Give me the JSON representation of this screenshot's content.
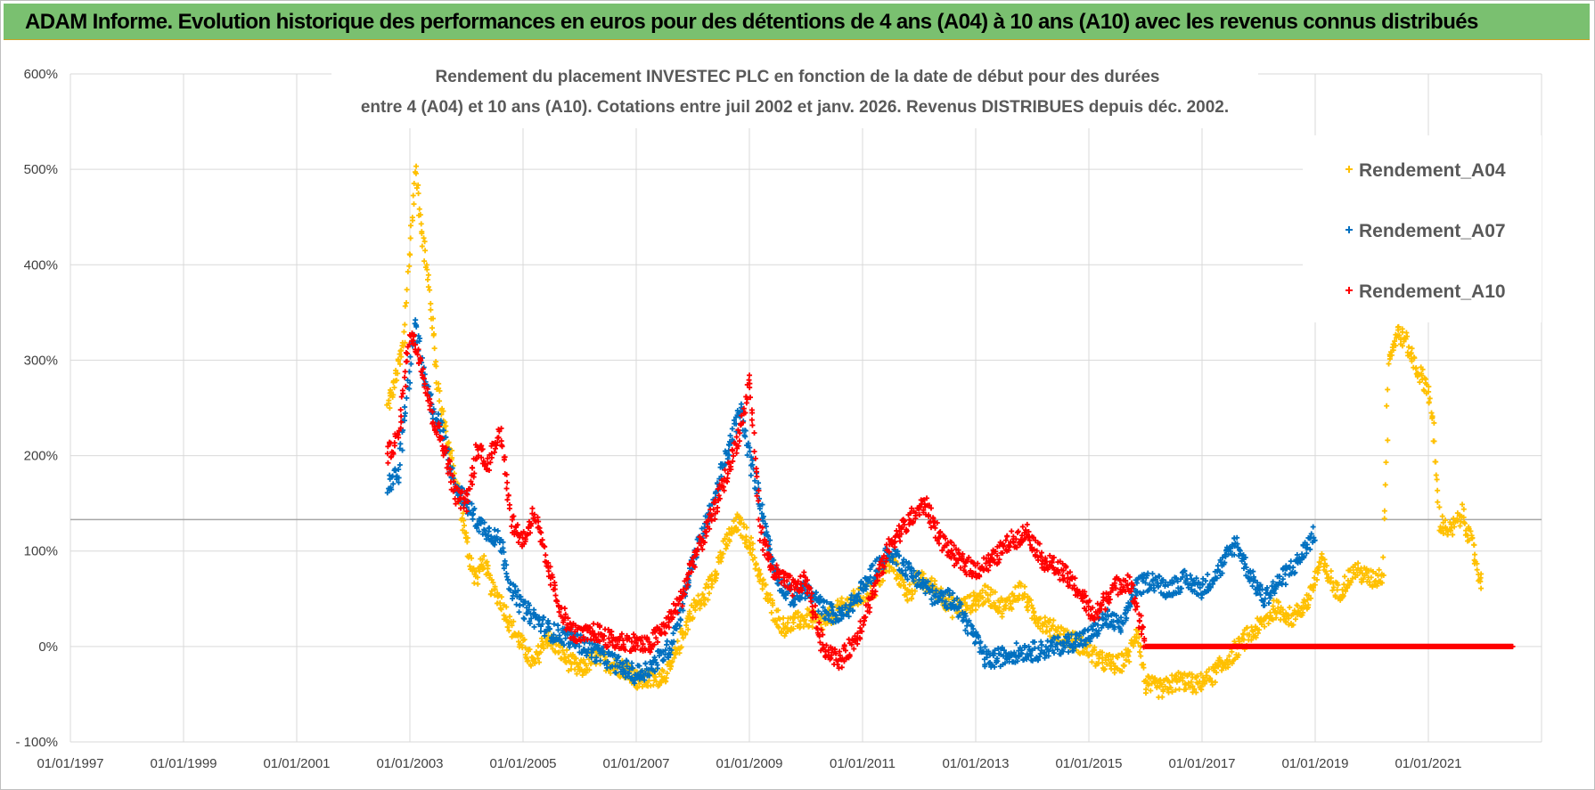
{
  "header": {
    "title": "ADAM Informe. Evolution historique des performances en euros pour des détentions de 4 ans (A04) à 10 ans (A10) avec les revenus connus distribués"
  },
  "chart_data": {
    "type": "scatter",
    "title_line1": "Rendement du placement INVESTEC PLC en fonction de la date de début pour des durées",
    "title_line2": "entre 4 (A04) et 10 ans (A10).  Cotations entre juil 2002 et janv. 2026. Revenus DISTRIBUES depuis déc. 2002.",
    "xlabel": "",
    "ylabel": "",
    "xlim": [
      1997.0,
      2023.0
    ],
    "ylim": [
      -100,
      600
    ],
    "x_ticks": [
      {
        "value": 1997,
        "label": "01/01/1997"
      },
      {
        "value": 1999,
        "label": "01/01/1999"
      },
      {
        "value": 2001,
        "label": "01/01/2001"
      },
      {
        "value": 2003,
        "label": "01/01/2003"
      },
      {
        "value": 2005,
        "label": "01/01/2005"
      },
      {
        "value": 2007,
        "label": "01/01/2007"
      },
      {
        "value": 2009,
        "label": "01/01/2009"
      },
      {
        "value": 2011,
        "label": "01/01/2011"
      },
      {
        "value": 2013,
        "label": "01/01/2013"
      },
      {
        "value": 2015,
        "label": "01/01/2015"
      },
      {
        "value": 2017,
        "label": "01/01/2017"
      },
      {
        "value": 2019,
        "label": "01/01/2019"
      },
      {
        "value": 2021,
        "label": "01/01/2021"
      }
    ],
    "y_ticks": [
      {
        "value": 600,
        "label": "600%"
      },
      {
        "value": 500,
        "label": "500%"
      },
      {
        "value": 400,
        "label": "400%"
      },
      {
        "value": 300,
        "label": "300%"
      },
      {
        "value": 200,
        "label": "200%"
      },
      {
        "value": 100,
        "label": "100%"
      },
      {
        "value": 0,
        "label": "0%"
      },
      {
        "value": -100,
        "label": "- 100%"
      }
    ],
    "reference_line_value": 133,
    "legend_position": "right",
    "series": [
      {
        "name": "Rendement_A04",
        "color": "#ffc000",
        "points": [
          [
            2002.6,
            250
          ],
          [
            2002.75,
            280
          ],
          [
            2002.9,
            320
          ],
          [
            2003.0,
            420
          ],
          [
            2003.1,
            500
          ],
          [
            2003.2,
            440
          ],
          [
            2003.35,
            370
          ],
          [
            2003.5,
            270
          ],
          [
            2003.65,
            220
          ],
          [
            2003.85,
            160
          ],
          [
            2004.0,
            110
          ],
          [
            2004.15,
            70
          ],
          [
            2004.3,
            90
          ],
          [
            2004.45,
            60
          ],
          [
            2004.6,
            50
          ],
          [
            2004.8,
            20
          ],
          [
            2005.0,
            0
          ],
          [
            2005.2,
            -20
          ],
          [
            2005.4,
            10
          ],
          [
            2005.6,
            0
          ],
          [
            2005.8,
            -15
          ],
          [
            2006.0,
            -25
          ],
          [
            2006.3,
            -10
          ],
          [
            2006.6,
            -20
          ],
          [
            2006.9,
            -25
          ],
          [
            2007.0,
            -35
          ],
          [
            2007.3,
            -35
          ],
          [
            2007.6,
            -25
          ],
          [
            2007.8,
            10
          ],
          [
            2008.0,
            40
          ],
          [
            2008.2,
            50
          ],
          [
            2008.4,
            80
          ],
          [
            2008.6,
            110
          ],
          [
            2008.8,
            130
          ],
          [
            2009.0,
            110
          ],
          [
            2009.2,
            70
          ],
          [
            2009.4,
            40
          ],
          [
            2009.6,
            20
          ],
          [
            2009.8,
            25
          ],
          [
            2010.0,
            30
          ],
          [
            2010.3,
            25
          ],
          [
            2010.6,
            40
          ],
          [
            2010.9,
            50
          ],
          [
            2011.2,
            60
          ],
          [
            2011.5,
            90
          ],
          [
            2011.8,
            55
          ],
          [
            2012.0,
            70
          ],
          [
            2012.3,
            60
          ],
          [
            2012.6,
            40
          ],
          [
            2012.9,
            45
          ],
          [
            2013.2,
            55
          ],
          [
            2013.5,
            40
          ],
          [
            2013.8,
            60
          ],
          [
            2014.0,
            35
          ],
          [
            2014.3,
            20
          ],
          [
            2014.6,
            10
          ],
          [
            2014.9,
            0
          ],
          [
            2015.2,
            -15
          ],
          [
            2015.5,
            -20
          ],
          [
            2015.7,
            -10
          ],
          [
            2015.85,
            20
          ],
          [
            2016.0,
            -40
          ],
          [
            2016.3,
            -45
          ],
          [
            2016.6,
            -35
          ],
          [
            2016.9,
            -40
          ],
          [
            2017.2,
            -30
          ],
          [
            2017.5,
            -10
          ],
          [
            2017.8,
            10
          ],
          [
            2018.0,
            20
          ],
          [
            2018.3,
            40
          ],
          [
            2018.6,
            30
          ],
          [
            2018.9,
            50
          ],
          [
            2019.1,
            90
          ],
          [
            2019.4,
            55
          ],
          [
            2019.7,
            80
          ],
          [
            2020.0,
            70
          ],
          [
            2020.2,
            75
          ],
          [
            2020.3,
            300
          ],
          [
            2020.45,
            330
          ],
          [
            2020.6,
            320
          ],
          [
            2020.8,
            290
          ],
          [
            2021.0,
            270
          ],
          [
            2021.1,
            220
          ],
          [
            2021.2,
            130
          ],
          [
            2021.4,
            120
          ],
          [
            2021.6,
            140
          ],
          [
            2021.8,
            100
          ],
          [
            2021.95,
            60
          ]
        ]
      },
      {
        "name": "Rendement_A07",
        "color": "#0070c0",
        "points": [
          [
            2002.6,
            170
          ],
          [
            2002.8,
            180
          ],
          [
            2003.0,
            290
          ],
          [
            2003.1,
            340
          ],
          [
            2003.25,
            280
          ],
          [
            2003.4,
            250
          ],
          [
            2003.6,
            220
          ],
          [
            2003.8,
            170
          ],
          [
            2004.0,
            150
          ],
          [
            2004.2,
            130
          ],
          [
            2004.4,
            120
          ],
          [
            2004.6,
            110
          ],
          [
            2004.8,
            60
          ],
          [
            2005.0,
            40
          ],
          [
            2005.2,
            30
          ],
          [
            2005.5,
            15
          ],
          [
            2005.8,
            10
          ],
          [
            2006.1,
            0
          ],
          [
            2006.4,
            -10
          ],
          [
            2006.7,
            -20
          ],
          [
            2007.0,
            -30
          ],
          [
            2007.3,
            -20
          ],
          [
            2007.6,
            0
          ],
          [
            2007.8,
            40
          ],
          [
            2008.0,
            90
          ],
          [
            2008.3,
            140
          ],
          [
            2008.6,
            200
          ],
          [
            2008.85,
            250
          ],
          [
            2009.0,
            200
          ],
          [
            2009.2,
            150
          ],
          [
            2009.4,
            90
          ],
          [
            2009.6,
            60
          ],
          [
            2009.8,
            50
          ],
          [
            2010.0,
            60
          ],
          [
            2010.3,
            40
          ],
          [
            2010.6,
            30
          ],
          [
            2010.9,
            50
          ],
          [
            2011.2,
            80
          ],
          [
            2011.5,
            100
          ],
          [
            2011.8,
            80
          ],
          [
            2012.0,
            70
          ],
          [
            2012.3,
            50
          ],
          [
            2012.6,
            50
          ],
          [
            2012.8,
            30
          ],
          [
            2013.2,
            -15
          ],
          [
            2013.5,
            -10
          ],
          [
            2013.8,
            -5
          ],
          [
            2014.1,
            -5
          ],
          [
            2014.4,
            0
          ],
          [
            2014.7,
            5
          ],
          [
            2015.0,
            10
          ],
          [
            2015.3,
            30
          ],
          [
            2015.6,
            20
          ],
          [
            2015.8,
            60
          ],
          [
            2016.1,
            70
          ],
          [
            2016.4,
            60
          ],
          [
            2016.7,
            70
          ],
          [
            2017.0,
            60
          ],
          [
            2017.3,
            80
          ],
          [
            2017.6,
            110
          ],
          [
            2017.8,
            80
          ],
          [
            2018.1,
            50
          ],
          [
            2018.4,
            70
          ],
          [
            2018.7,
            90
          ],
          [
            2019.0,
            120
          ]
        ]
      },
      {
        "name": "Rendement_A10",
        "color": "#ff0000",
        "points": [
          [
            2002.6,
            200
          ],
          [
            2002.8,
            220
          ],
          [
            2003.0,
            330
          ],
          [
            2003.2,
            300
          ],
          [
            2003.4,
            240
          ],
          [
            2003.6,
            210
          ],
          [
            2003.8,
            160
          ],
          [
            2004.0,
            150
          ],
          [
            2004.2,
            210
          ],
          [
            2004.4,
            190
          ],
          [
            2004.6,
            230
          ],
          [
            2004.8,
            130
          ],
          [
            2005.0,
            110
          ],
          [
            2005.2,
            140
          ],
          [
            2005.4,
            90
          ],
          [
            2005.6,
            50
          ],
          [
            2005.8,
            20
          ],
          [
            2006.0,
            10
          ],
          [
            2006.3,
            15
          ],
          [
            2006.6,
            5
          ],
          [
            2006.9,
            5
          ],
          [
            2007.2,
            0
          ],
          [
            2007.5,
            20
          ],
          [
            2007.8,
            50
          ],
          [
            2008.0,
            90
          ],
          [
            2008.3,
            130
          ],
          [
            2008.6,
            180
          ],
          [
            2008.85,
            230
          ],
          [
            2009.0,
            280
          ],
          [
            2009.2,
            120
          ],
          [
            2009.4,
            80
          ],
          [
            2009.6,
            70
          ],
          [
            2009.8,
            60
          ],
          [
            2010.0,
            70
          ],
          [
            2010.3,
            0
          ],
          [
            2010.6,
            -15
          ],
          [
            2010.9,
            10
          ],
          [
            2011.2,
            60
          ],
          [
            2011.5,
            110
          ],
          [
            2011.8,
            130
          ],
          [
            2012.1,
            150
          ],
          [
            2012.4,
            110
          ],
          [
            2012.7,
            90
          ],
          [
            2013.0,
            80
          ],
          [
            2013.3,
            90
          ],
          [
            2013.6,
            110
          ],
          [
            2013.9,
            120
          ],
          [
            2014.2,
            90
          ],
          [
            2014.5,
            80
          ],
          [
            2014.8,
            60
          ],
          [
            2015.1,
            30
          ],
          [
            2015.4,
            60
          ],
          [
            2015.7,
            70
          ],
          [
            2015.85,
            40
          ],
          [
            2016.0,
            0
          ],
          [
            2017.0,
            0
          ],
          [
            2018.0,
            0
          ],
          [
            2019.0,
            0
          ],
          [
            2020.0,
            0
          ],
          [
            2021.0,
            0
          ],
          [
            2022.0,
            0
          ],
          [
            2022.5,
            0
          ]
        ]
      }
    ]
  }
}
